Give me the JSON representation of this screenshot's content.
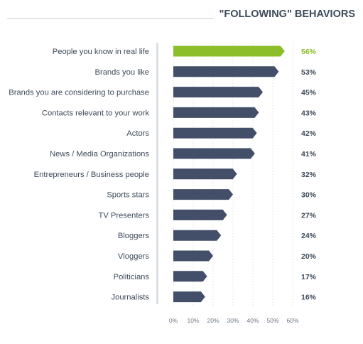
{
  "chart_data": {
    "type": "bar",
    "orientation": "horizontal",
    "title": "\"FOLLOWING\" BEHAVIORS",
    "categories": [
      "People you know in real life",
      "Brands you like",
      "Brands you are considering to purchase",
      "Contacts relevant to your work",
      "Actors",
      "News / Media Organizations",
      "Entrepreneurs / Business people",
      "Sports stars",
      "TV Presenters",
      "Bloggers",
      "Vloggers",
      "Politicians",
      "Journalists"
    ],
    "values": [
      56,
      53,
      45,
      43,
      42,
      41,
      32,
      30,
      27,
      24,
      20,
      17,
      16
    ],
    "value_labels": [
      "56%",
      "53%",
      "45%",
      "43%",
      "42%",
      "41%",
      "32%",
      "30%",
      "27%",
      "24%",
      "20%",
      "17%",
      "16%"
    ],
    "xlim": [
      0,
      60
    ],
    "x_ticks": [
      "0%",
      "10%",
      "20%",
      "30%",
      "40%",
      "50%",
      "60%"
    ],
    "grid": true,
    "legend": "none",
    "colors": {
      "bar": "#434f68",
      "highlight_bar": "#8cbd2a",
      "highlight_label": "#8cbd2a",
      "label_text": "#3c4a5a",
      "title_text": "#3c4a5a",
      "gridline": "#dfe3e8",
      "axis_line": "#dcdfe4",
      "title_rule": "#c8ccd1"
    },
    "highlight_index": 0
  }
}
